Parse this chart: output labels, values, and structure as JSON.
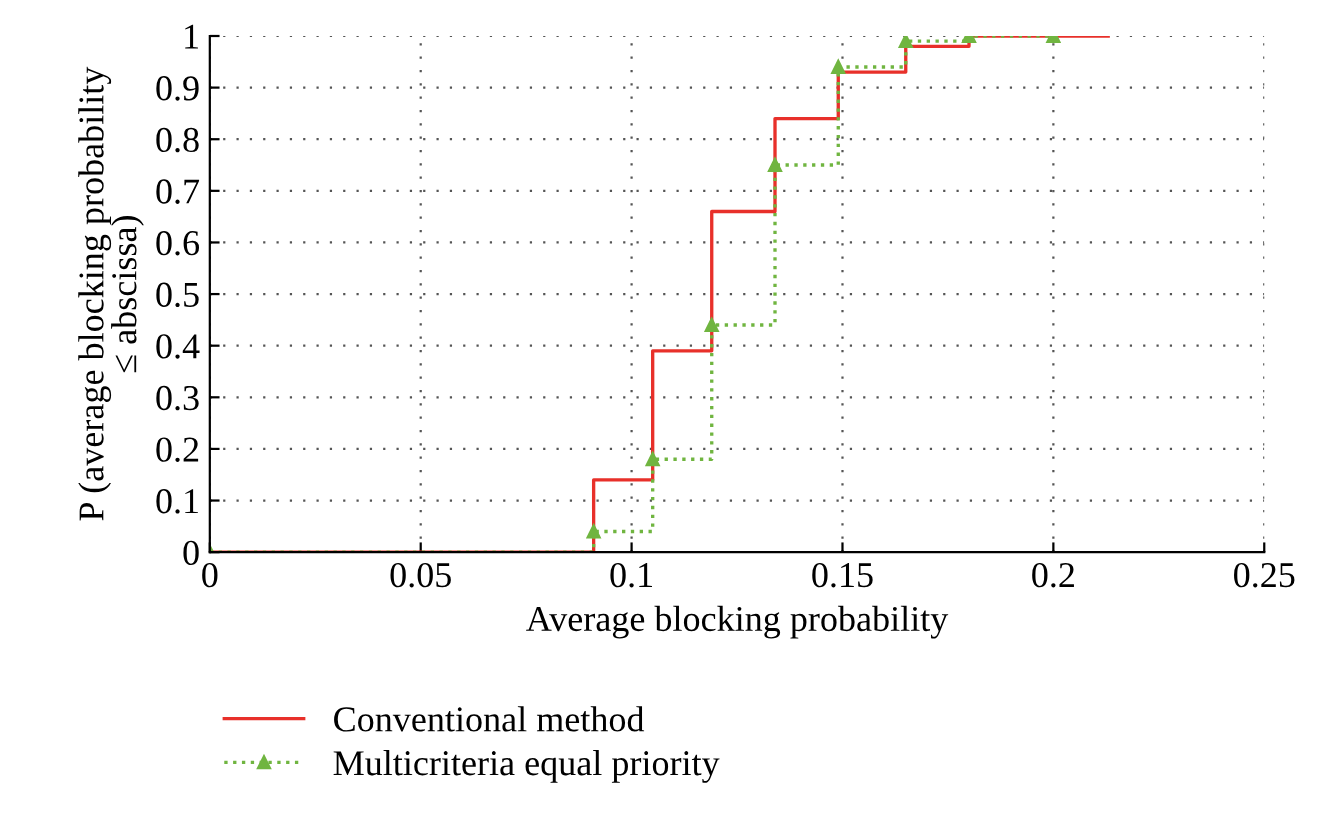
{
  "chart_data": {
    "type": "step",
    "xlabel": "Average blocking probability",
    "ylabel": "P (average blocking probability\n≤ abscissa)",
    "xlim": [
      0,
      0.25
    ],
    "xticks": [
      0,
      0.05,
      0.1,
      0.15,
      0.2,
      0.25
    ],
    "ylim": [
      0,
      1
    ],
    "yticks": [
      0,
      0.1,
      0.2,
      0.3,
      0.4,
      0.5,
      0.6,
      0.7,
      0.8,
      0.9,
      1
    ],
    "grid": true,
    "legend": "bottom",
    "series": [
      {
        "name": "Conventional method",
        "color": "#e8302a",
        "marker": "none",
        "line_style": "solid",
        "x": [
          0,
          0.091,
          0.105,
          0.119,
          0.134,
          0.149,
          0.165,
          0.18,
          0.213
        ],
        "values": [
          0,
          0.14,
          0.39,
          0.66,
          0.84,
          0.93,
          0.98,
          1.0,
          1.0
        ]
      },
      {
        "name": "Multicriteria equal priority",
        "color": "#70b540",
        "marker": "triangle",
        "line_style": "dotted",
        "x": [
          0,
          0.091,
          0.105,
          0.119,
          0.134,
          0.149,
          0.165,
          0.18,
          0.2
        ],
        "values": [
          0,
          0.04,
          0.18,
          0.44,
          0.75,
          0.94,
          0.99,
          1.0,
          1.0
        ]
      }
    ]
  }
}
